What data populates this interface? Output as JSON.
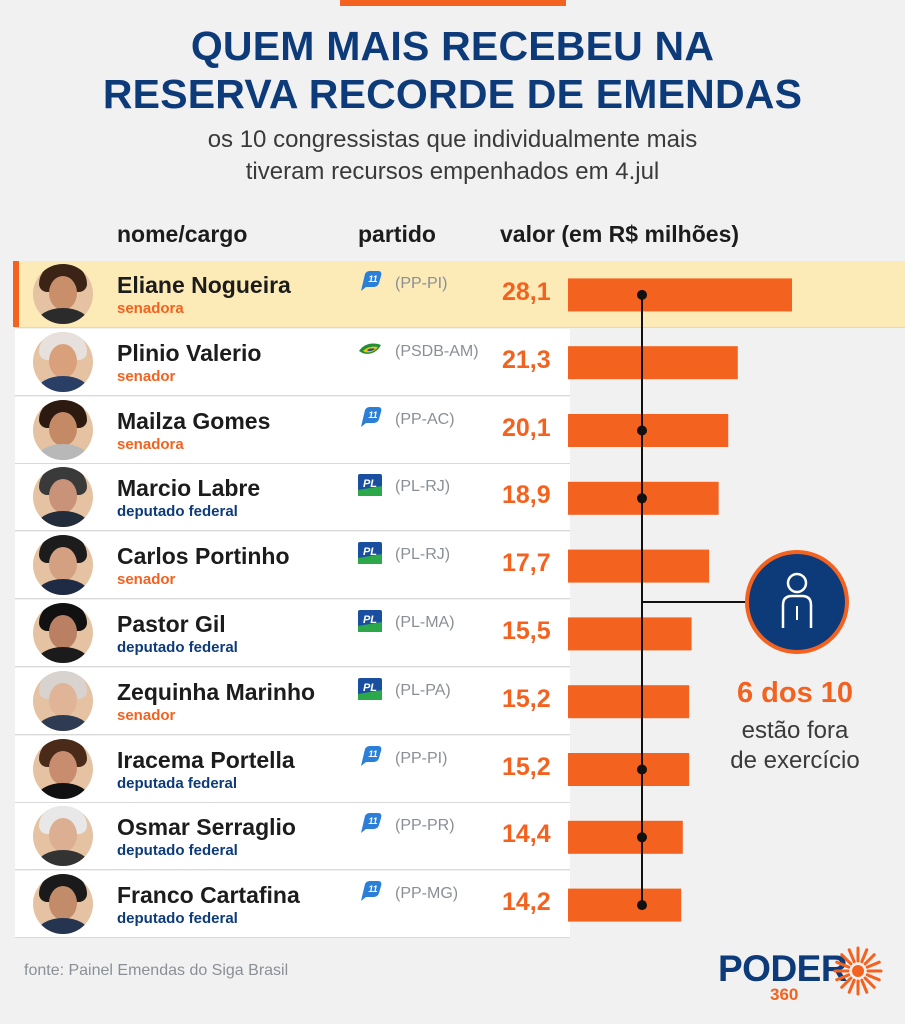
{
  "title_line1": "QUEM MAIS RECEBEU NA",
  "title_line2": "RESERVA RECORDE DE EMENDAS",
  "subtitle_line1": "os 10 congressistas que individualmente mais",
  "subtitle_line2": "tiveram recursos empenhados em 4.jul",
  "headers": {
    "name": "nome/cargo",
    "party": "partido",
    "value": "valor (em R$ milhões)"
  },
  "colors": {
    "accent": "#f4621f",
    "navy": "#0d3b7a",
    "highlight": "#fdebb7",
    "text": "#1c1c1c",
    "muted": "#8a8f96"
  },
  "chart_data": {
    "type": "bar",
    "orientation": "horizontal",
    "unit": "R$ milhões",
    "categories": [
      "Eliane Nogueira",
      "Plinio Valerio",
      "Mailza Gomes",
      "Marcio Labre",
      "Carlos Portinho",
      "Pastor Gil",
      "Zequinha Marinho",
      "Iracema Portella",
      "Osmar Serraglio",
      "Franco Cartafina"
    ],
    "values": [
      28.1,
      21.3,
      20.1,
      18.9,
      17.7,
      15.5,
      15.2,
      15.2,
      14.4,
      14.2
    ],
    "out_of_office": [
      true,
      false,
      true,
      true,
      false,
      false,
      false,
      true,
      true,
      true
    ]
  },
  "rows": [
    {
      "name": "Eliane Nogueira",
      "role": "senadora",
      "role_color": "orange",
      "party": "(PP-PI)",
      "party_icon": "pp-logo",
      "value": "28,1",
      "highlight": true
    },
    {
      "name": "Plinio Valerio",
      "role": "senador",
      "role_color": "orange",
      "party": "(PSDB-AM)",
      "party_icon": "psdb-logo",
      "value": "21,3",
      "highlight": false
    },
    {
      "name": "Mailza Gomes",
      "role": "senadora",
      "role_color": "orange",
      "party": "(PP-AC)",
      "party_icon": "pp-logo",
      "value": "20,1",
      "highlight": false
    },
    {
      "name": "Marcio Labre",
      "role": "deputado federal",
      "role_color": "blue",
      "party": "(PL-RJ)",
      "party_icon": "pl-logo",
      "value": "18,9",
      "highlight": false
    },
    {
      "name": "Carlos Portinho",
      "role": "senador",
      "role_color": "orange",
      "party": "(PL-RJ)",
      "party_icon": "pl-logo",
      "value": "17,7",
      "highlight": false
    },
    {
      "name": "Pastor Gil",
      "role": "deputado federal",
      "role_color": "blue",
      "party": "(PL-MA)",
      "party_icon": "pl-logo",
      "value": "15,5",
      "highlight": false
    },
    {
      "name": "Zequinha Marinho",
      "role": "senador",
      "role_color": "orange",
      "party": "(PL-PA)",
      "party_icon": "pl-logo",
      "value": "15,2",
      "highlight": false
    },
    {
      "name": "Iracema Portella",
      "role": "deputada federal",
      "role_color": "blue",
      "party": "(PP-PI)",
      "party_icon": "pp-logo",
      "value": "15,2",
      "highlight": false
    },
    {
      "name": "Osmar Serraglio",
      "role": "deputado federal",
      "role_color": "blue",
      "party": "(PP-PR)",
      "party_icon": "pp-logo",
      "value": "14,4",
      "highlight": false
    },
    {
      "name": "Franco Cartafina",
      "role": "deputado federal",
      "role_color": "blue",
      "party": "(PP-MG)",
      "party_icon": "pp-logo",
      "value": "14,2",
      "highlight": false
    }
  ],
  "callout": {
    "icon": "person-icon",
    "count": "6 dos 10",
    "text_line1": "estão fora",
    "text_line2": "de exercício"
  },
  "source": "fonte: Painel Emendas do Siga Brasil",
  "logo": {
    "word": "PODER",
    "number": "360"
  }
}
